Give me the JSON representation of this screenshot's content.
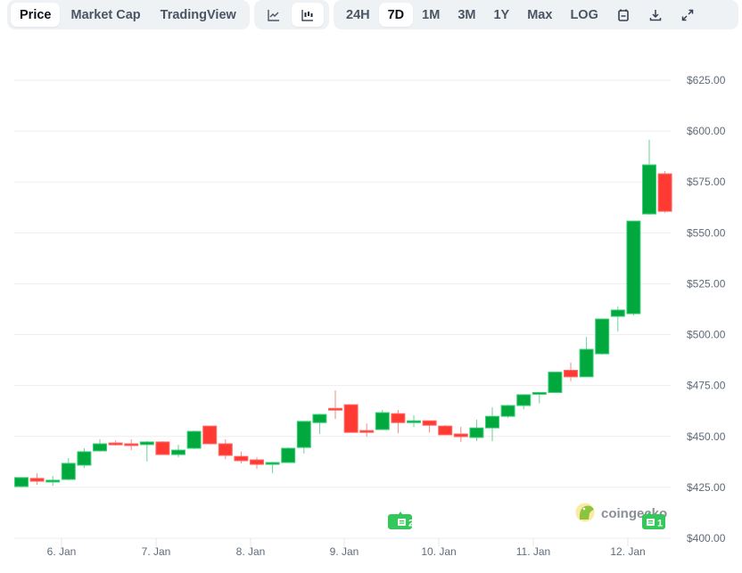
{
  "toolbar": {
    "view_tabs": [
      {
        "label": "Price",
        "active": true
      },
      {
        "label": "Market Cap",
        "active": false
      },
      {
        "label": "TradingView",
        "active": false
      }
    ],
    "chart_type_buttons": [
      {
        "icon": "line-chart-icon",
        "active": false
      },
      {
        "icon": "candlestick-chart-icon",
        "active": true
      }
    ],
    "range_tabs": [
      {
        "label": "24H",
        "active": false
      },
      {
        "label": "7D",
        "active": true
      },
      {
        "label": "1M",
        "active": false
      },
      {
        "label": "3M",
        "active": false
      },
      {
        "label": "1Y",
        "active": false
      },
      {
        "label": "Max",
        "active": false
      },
      {
        "label": "LOG",
        "active": false
      }
    ],
    "action_icons": [
      "calendar-icon",
      "download-icon",
      "expand-icon"
    ]
  },
  "branding": {
    "logo_text": "coingecko"
  },
  "news_badges": [
    {
      "count": "2",
      "x_label": "between 9. Jan and 10. Jan"
    },
    {
      "count": "1",
      "x_label": "after 12. Jan"
    }
  ],
  "colors": {
    "up": "#00a83e",
    "down": "#ff3a33",
    "grid": "#eeeeee",
    "axis_text": "#5f6b7a",
    "badge": "#34c759"
  },
  "chart_data": {
    "type": "candlestick",
    "title": "",
    "xlabel": "",
    "ylabel": "",
    "ylim": [
      400,
      625
    ],
    "y_ticks": [
      "$400.00",
      "$425.00",
      "$450.00",
      "$475.00",
      "$500.00",
      "$525.00",
      "$550.00",
      "$575.00",
      "$600.00",
      "$625.00"
    ],
    "x_ticks": [
      "6. Jan",
      "7. Jan",
      "8. Jan",
      "9. Jan",
      "10. Jan",
      "11. Jan",
      "12. Jan"
    ],
    "grid": true,
    "legend": null,
    "candles": [
      {
        "o": 425.4,
        "h": 430.0,
        "l": 425.0,
        "c": 429.8
      },
      {
        "o": 429.4,
        "h": 431.9,
        "l": 426.3,
        "c": 428.0
      },
      {
        "o": 427.8,
        "h": 430.6,
        "l": 425.8,
        "c": 428.5
      },
      {
        "o": 428.9,
        "h": 439.4,
        "l": 428.5,
        "c": 436.8
      },
      {
        "o": 435.9,
        "h": 444.2,
        "l": 434.6,
        "c": 442.5
      },
      {
        "o": 442.9,
        "h": 448.6,
        "l": 442.5,
        "c": 446.4
      },
      {
        "o": 446.8,
        "h": 448.1,
        "l": 445.5,
        "c": 445.9
      },
      {
        "o": 446.4,
        "h": 448.6,
        "l": 443.3,
        "c": 446.0
      },
      {
        "o": 446.0,
        "h": 447.7,
        "l": 437.7,
        "c": 447.3
      },
      {
        "o": 447.3,
        "h": 447.7,
        "l": 441.1,
        "c": 441.1
      },
      {
        "o": 441.1,
        "h": 445.9,
        "l": 439.8,
        "c": 443.3
      },
      {
        "o": 444.2,
        "h": 452.9,
        "l": 443.8,
        "c": 452.5
      },
      {
        "o": 455.1,
        "h": 455.1,
        "l": 446.4,
        "c": 446.4
      },
      {
        "o": 446.4,
        "h": 448.6,
        "l": 438.9,
        "c": 440.7
      },
      {
        "o": 440.2,
        "h": 442.5,
        "l": 436.8,
        "c": 438.1
      },
      {
        "o": 438.5,
        "h": 439.8,
        "l": 434.1,
        "c": 436.3
      },
      {
        "o": 436.3,
        "h": 437.6,
        "l": 431.9,
        "c": 437.2
      },
      {
        "o": 437.2,
        "h": 444.6,
        "l": 437.2,
        "c": 444.2
      },
      {
        "o": 444.6,
        "h": 457.6,
        "l": 441.6,
        "c": 457.4
      },
      {
        "o": 456.8,
        "h": 461.2,
        "l": 451.2,
        "c": 460.8
      },
      {
        "o": 463.8,
        "h": 472.6,
        "l": 458.6,
        "c": 463.4
      },
      {
        "o": 465.6,
        "h": 465.6,
        "l": 452.0,
        "c": 452.0
      },
      {
        "o": 452.9,
        "h": 456.4,
        "l": 449.9,
        "c": 452.0
      },
      {
        "o": 453.4,
        "h": 463.0,
        "l": 453.4,
        "c": 461.7
      },
      {
        "o": 461.2,
        "h": 463.0,
        "l": 451.6,
        "c": 456.8
      },
      {
        "o": 456.8,
        "h": 460.4,
        "l": 454.6,
        "c": 457.7
      },
      {
        "o": 457.7,
        "h": 457.7,
        "l": 452.0,
        "c": 455.5
      },
      {
        "o": 455.1,
        "h": 455.6,
        "l": 450.8,
        "c": 450.8
      },
      {
        "o": 451.2,
        "h": 454.7,
        "l": 447.3,
        "c": 449.9
      },
      {
        "o": 449.5,
        "h": 458.2,
        "l": 447.7,
        "c": 454.2
      },
      {
        "o": 454.2,
        "h": 464.3,
        "l": 447.7,
        "c": 459.9
      },
      {
        "o": 459.9,
        "h": 465.6,
        "l": 459.0,
        "c": 465.2
      },
      {
        "o": 465.2,
        "h": 470.8,
        "l": 463.4,
        "c": 470.5
      },
      {
        "o": 471.2,
        "h": 471.6,
        "l": 466.3,
        "c": 471.6
      },
      {
        "o": 471.6,
        "h": 481.6,
        "l": 471.6,
        "c": 481.6
      },
      {
        "o": 482.5,
        "h": 486.3,
        "l": 477.2,
        "c": 479.3
      },
      {
        "o": 479.3,
        "h": 498.9,
        "l": 479.3,
        "c": 492.8
      },
      {
        "o": 490.6,
        "h": 507.7,
        "l": 490.2,
        "c": 507.7
      },
      {
        "o": 509.0,
        "h": 513.8,
        "l": 501.6,
        "c": 512.1
      },
      {
        "o": 510.3,
        "h": 555.8,
        "l": 509.4,
        "c": 555.8
      },
      {
        "o": 559.3,
        "h": 595.7,
        "l": 558.9,
        "c": 583.4
      },
      {
        "o": 579.0,
        "h": 580.3,
        "l": 559.8,
        "c": 560.6
      }
    ]
  }
}
